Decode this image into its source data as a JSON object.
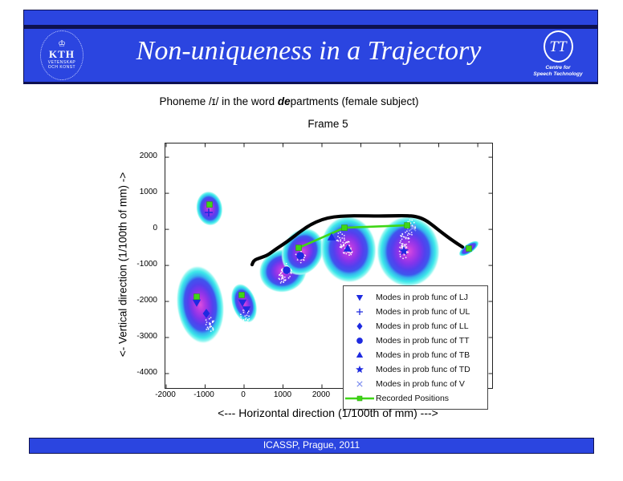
{
  "header": {
    "title": "Non-uniqueness in a Trajectory",
    "kth_logo": {
      "crown": "♔",
      "text": "KTH",
      "sub1": "VETENSKAP",
      "sub2": "OCH KONST"
    },
    "tt_logo": {
      "text": "TT",
      "caption1": "Centre for",
      "caption2": "Speech Technology"
    }
  },
  "subtitle": {
    "prefix": "Phoneme /ɪ/ in the word ",
    "emphasis": "de",
    "rest": "partments (female subject)"
  },
  "footer": {
    "text": "ICASSP, Prague,  2011"
  },
  "colors": {
    "banner_blue": "#2b45e0",
    "banner_border": "#0e1150",
    "marker_blue": "#1e2ae0",
    "marker_blue_light": "#8091f0",
    "recorded_green": "#3fd616",
    "recorded_green_edge": "#2f9c10",
    "trajectory_black": "#000000",
    "blob_gradient": [
      [
        "0%",
        "#dd4fdd"
      ],
      [
        "18%",
        "#b23ae4"
      ],
      [
        "36%",
        "#8434ea"
      ],
      [
        "52%",
        "#5340ee"
      ],
      [
        "66%",
        "#3f55ee"
      ],
      [
        "74%",
        "#35b0ee"
      ],
      [
        "85%",
        "#3de8ea"
      ],
      [
        "94%",
        "#9df7f2"
      ],
      [
        "100%",
        "rgba(235,255,253,0)"
      ]
    ]
  },
  "chart_data": {
    "type": "scatter",
    "title": "Frame 5",
    "xlabel": "<--- Horizontal direction (1/100th of mm) --->",
    "ylabel": "<- Vertical direction (1/100th of mm) ->",
    "xlim": [
      -2020,
      6370
    ],
    "ylim": [
      -4400,
      2380
    ],
    "grid": false,
    "xticks": [
      -2000,
      -1000,
      0,
      1000,
      2000,
      3000,
      4000,
      5000,
      6000
    ],
    "xtick_labels": [
      -2000,
      -1000,
      0,
      1000,
      2000
    ],
    "yticks": [
      2000,
      1000,
      0,
      -1000,
      -2000,
      -3000,
      -4000
    ],
    "blobs": [
      {
        "cx": -890,
        "cy": 580,
        "rx": 340,
        "ry": 480,
        "rot": -8
      },
      {
        "cx": -1124,
        "cy": -2089,
        "rx": 608,
        "ry": 1089,
        "rot": -7
      },
      {
        "cx": 0,
        "cy": -2050,
        "rx": 310,
        "ry": 560,
        "rot": -18
      },
      {
        "cx": 1000,
        "cy": -1150,
        "rx": 620,
        "ry": 600,
        "rot": -15
      },
      {
        "cx": 1500,
        "cy": -620,
        "rx": 520,
        "ry": 680,
        "rot": 28
      },
      {
        "cx": 2680,
        "cy": -555,
        "rx": 720,
        "ry": 930,
        "rot": -5
      },
      {
        "cx": 4216,
        "cy": -611,
        "rx": 815,
        "ry": 990,
        "rot": 0
      },
      {
        "cx": 5773,
        "cy": -533,
        "rx": 300,
        "ry": 130,
        "rot": -35
      }
    ],
    "modes": [
      {
        "articulator": "LJ",
        "marker": "triangle-down",
        "points": [
          [
            -1216,
            -2030
          ],
          [
            -41,
            -2030
          ],
          [
            62,
            -2222
          ]
        ]
      },
      {
        "articulator": "UL",
        "marker": "plus",
        "points": [
          [
            -907,
            467
          ]
        ]
      },
      {
        "articulator": "LL",
        "marker": "diamond",
        "points": [
          [
            -969,
            -2333
          ]
        ]
      },
      {
        "articulator": "TT",
        "marker": "circle",
        "points": [
          [
            1093,
            -1133
          ],
          [
            1443,
            -733
          ]
        ]
      },
      {
        "articulator": "TB",
        "marker": "triangle-up",
        "points": [
          [
            2247,
            -222
          ],
          [
            2660,
            -533
          ]
        ]
      },
      {
        "articulator": "TD",
        "marker": "star",
        "points": [
          [
            4103,
            -600
          ]
        ]
      },
      {
        "articulator": "V",
        "marker": "x",
        "points": [
          [
            4330,
            44
          ]
        ]
      }
    ],
    "speckle_clusters": [
      [
        -880,
        -2650
      ],
      [
        30,
        -2420
      ],
      [
        980,
        -1300
      ],
      [
        1100,
        -1150
      ],
      [
        1450,
        -750
      ],
      [
        2480,
        -300
      ],
      [
        2660,
        -560
      ],
      [
        4100,
        -600
      ],
      [
        4120,
        -300
      ],
      [
        4280,
        60
      ]
    ],
    "trajectory": [
      [
        206,
        -978
      ],
      [
        235,
        -860
      ],
      [
        420,
        -790
      ],
      [
        600,
        -720
      ],
      [
        800,
        -560
      ],
      [
        1000,
        -420
      ],
      [
        1200,
        -265
      ],
      [
        1400,
        -95
      ],
      [
        1700,
        130
      ],
      [
        2000,
        275
      ],
      [
        2300,
        350
      ],
      [
        2650,
        372
      ],
      [
        3000,
        376
      ],
      [
        3400,
        369
      ],
      [
        3800,
        373
      ],
      [
        4150,
        380
      ],
      [
        4420,
        360
      ],
      [
        4650,
        265
      ],
      [
        4870,
        90
      ],
      [
        5080,
        -90
      ],
      [
        5300,
        -270
      ],
      [
        5480,
        -400
      ],
      [
        5610,
        -489
      ]
    ],
    "recorded_line": [
      [
        1402,
        -511
      ],
      [
        2577,
        44
      ],
      [
        4186,
        111
      ]
    ],
    "recorded_points": [
      [
        -887,
        689
      ],
      [
        -1216,
        -1867
      ],
      [
        -62,
        -1822
      ],
      [
        1402,
        -511
      ],
      [
        2577,
        44
      ],
      [
        4186,
        111
      ],
      [
        5773,
        -533
      ]
    ],
    "legend": {
      "position": "bottom-right-inside",
      "items": [
        {
          "marker": "triangle-down",
          "label": "Modes in prob func of LJ"
        },
        {
          "marker": "plus",
          "label": "Modes in prob func of UL"
        },
        {
          "marker": "diamond",
          "label": "Modes in prob func of LL"
        },
        {
          "marker": "circle",
          "label": "Modes in prob func of TT"
        },
        {
          "marker": "triangle-up",
          "label": "Modes in prob func of TB"
        },
        {
          "marker": "star",
          "label": "Modes in prob func of TD"
        },
        {
          "marker": "x",
          "label": "Modes in prob func of V"
        },
        {
          "marker": "line-square",
          "label": "Recorded Positions"
        }
      ]
    }
  }
}
